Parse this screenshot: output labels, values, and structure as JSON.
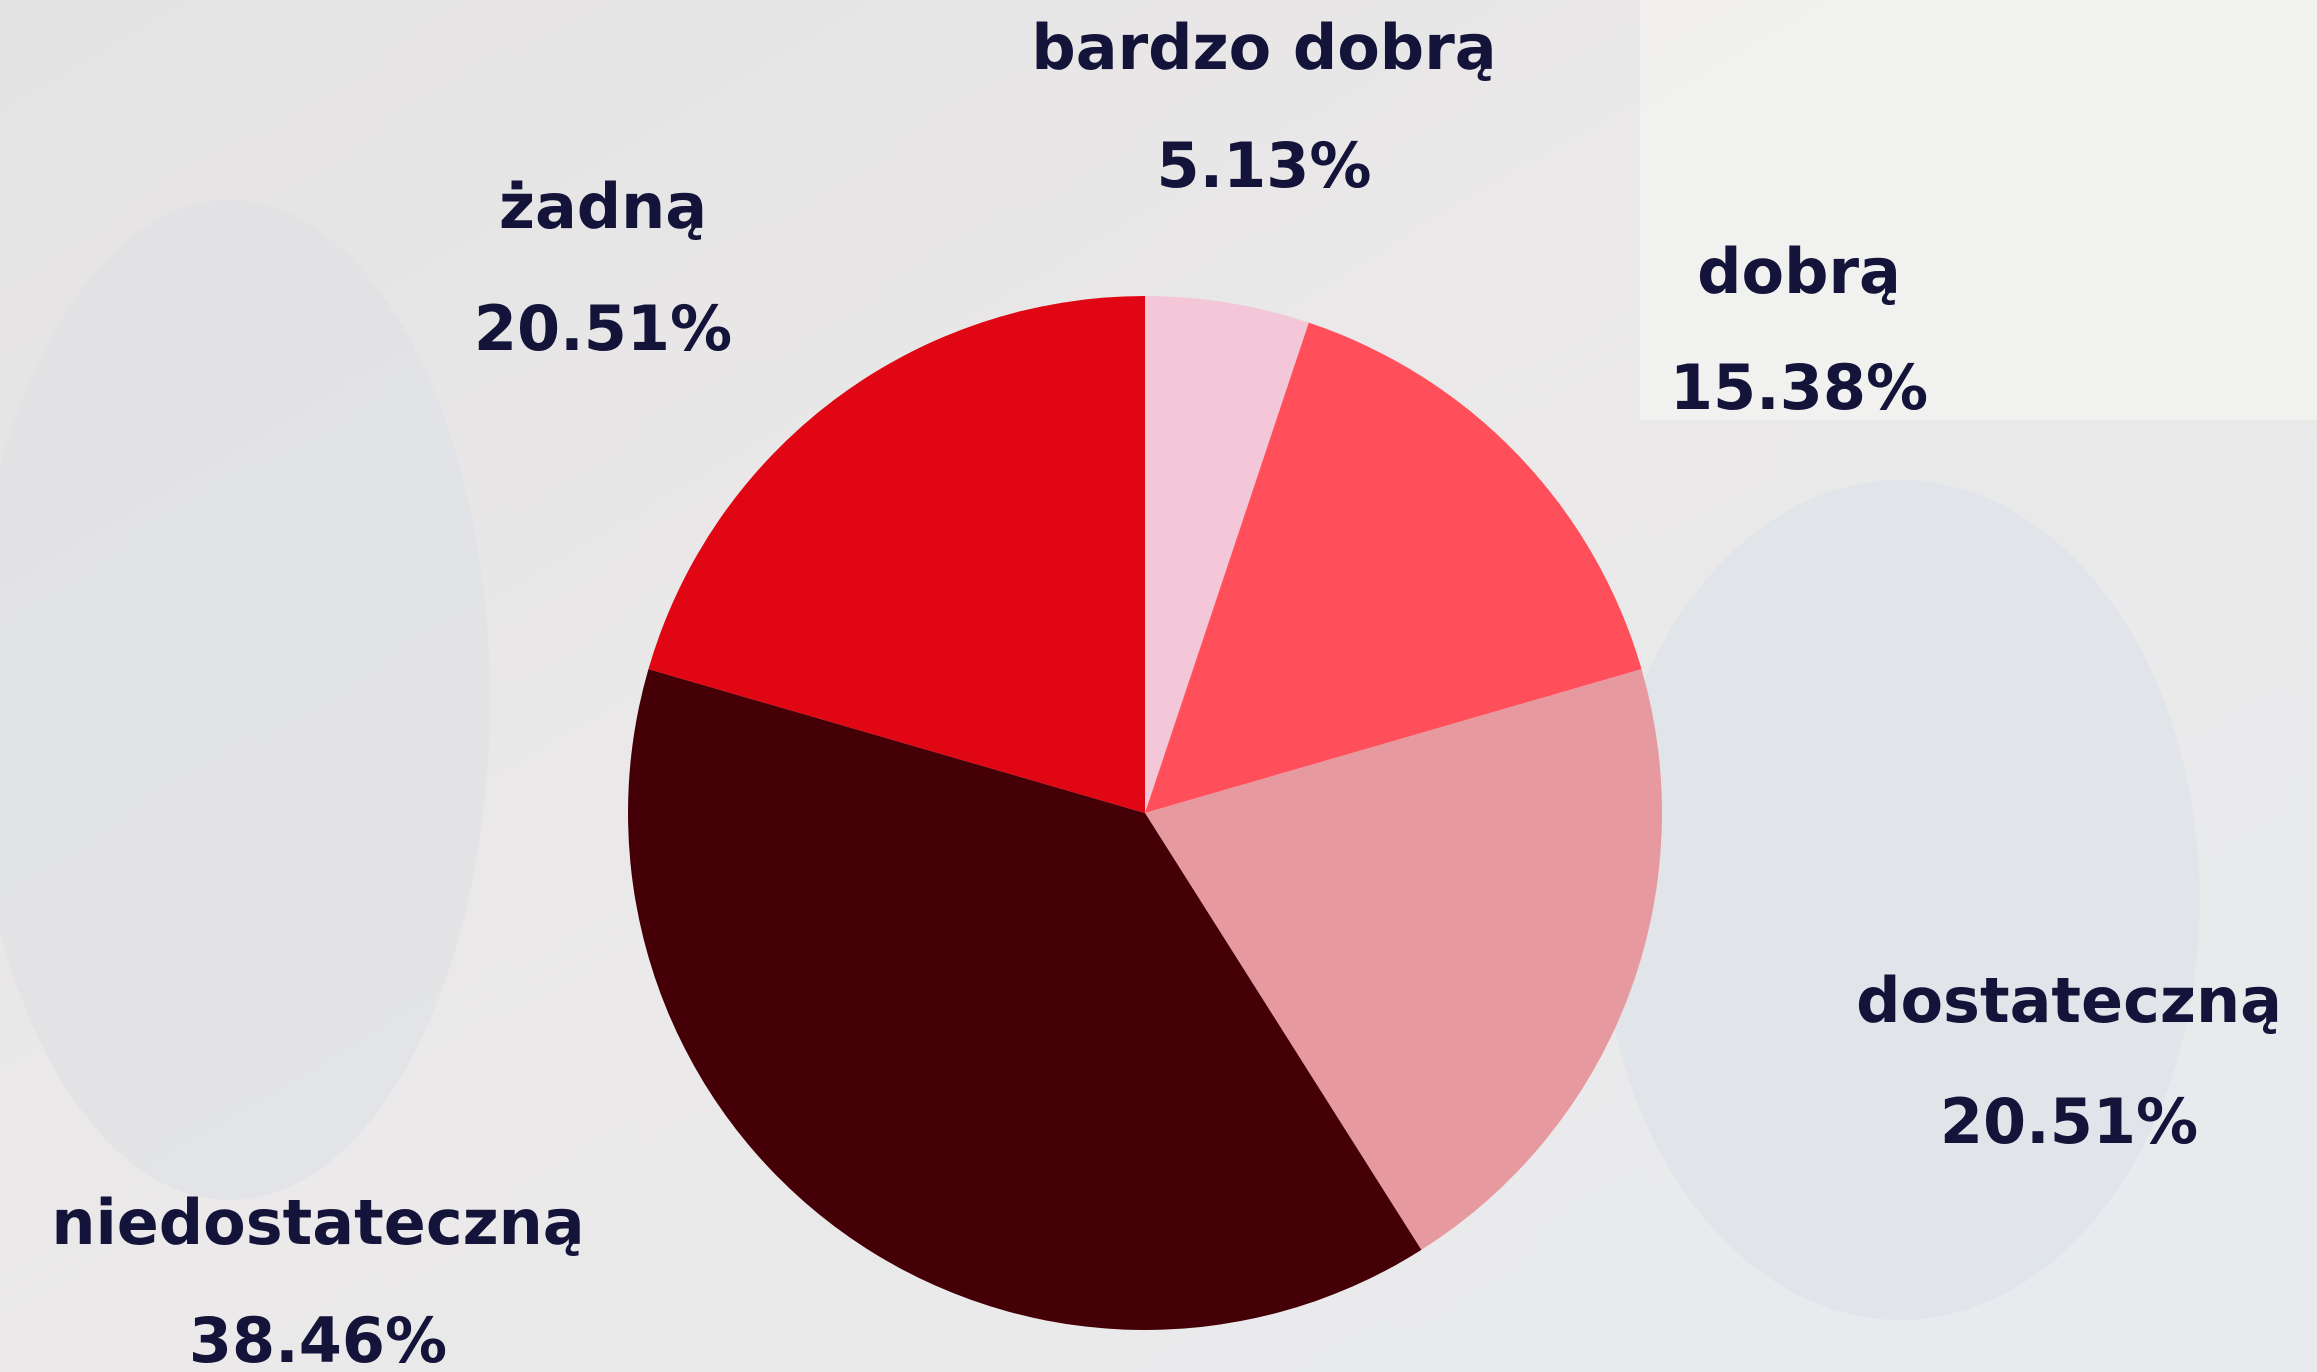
{
  "chart_data": {
    "type": "pie",
    "categories": [
      "bardzo dobrą",
      "dobrą",
      "dostateczną",
      "niedostateczną",
      "żadną"
    ],
    "values": [
      5.13,
      15.38,
      20.51,
      38.46,
      20.51
    ],
    "value_labels": [
      "5.13%",
      "15.38%",
      "20.51%",
      "38.46%",
      "20.51%"
    ],
    "colors": [
      "#f4c7d8",
      "#ff4f5a",
      "#e69a9f",
      "#440006",
      "#e10613"
    ]
  }
}
